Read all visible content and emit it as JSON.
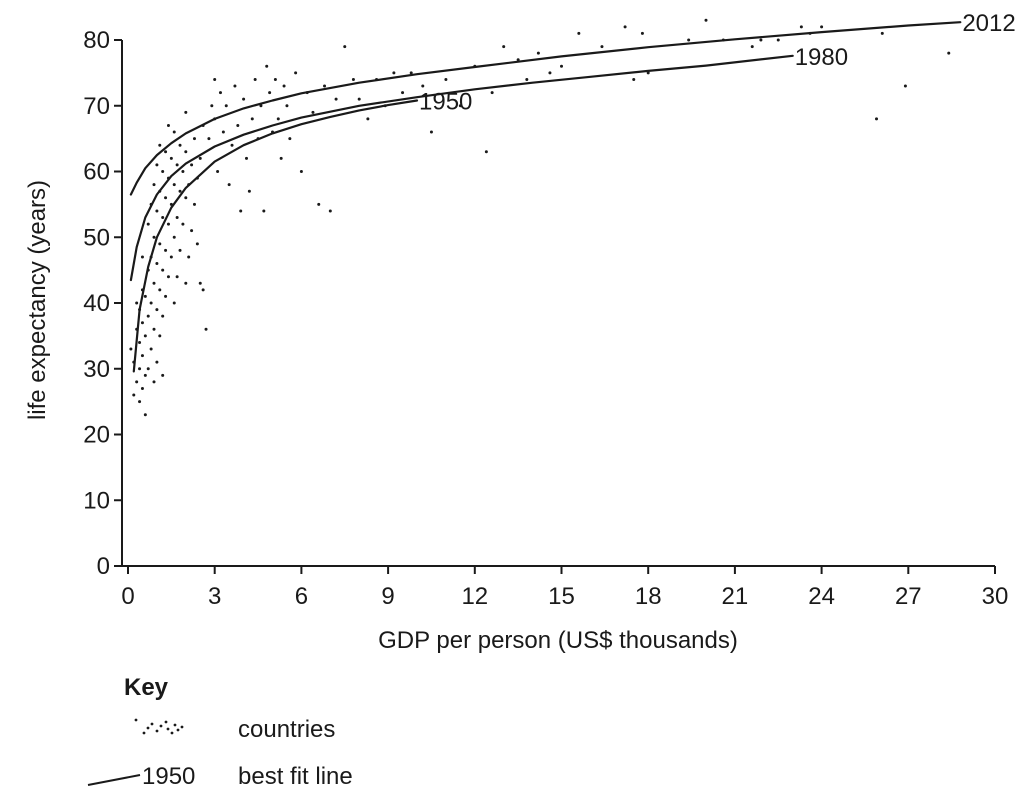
{
  "chart_data": {
    "type": "scatter",
    "xlabel": "GDP per person (US$ thousands)",
    "ylabel": "life expectancy (years)",
    "xlim": [
      0,
      30
    ],
    "ylim": [
      0,
      85
    ],
    "x_ticks": [
      0,
      3,
      6,
      9,
      12,
      15,
      18,
      21,
      24,
      27,
      30
    ],
    "y_ticks": [
      0,
      10,
      20,
      30,
      40,
      50,
      60,
      70,
      80
    ],
    "grid": false,
    "best_fit_lines": [
      {
        "label": "1950",
        "x": [
          0.2,
          0.4,
          0.7,
          1.0,
          1.5,
          2.0,
          3.0,
          4.0,
          5.0,
          6.0,
          7.0,
          8.0,
          9.0,
          10.0
        ],
        "y": [
          29.6,
          39.0,
          45.5,
          50.0,
          54.5,
          57.5,
          61.5,
          64.0,
          65.8,
          67.2,
          68.3,
          69.3,
          70.1,
          70.8
        ]
      },
      {
        "label": "1980",
        "x": [
          0.1,
          0.3,
          0.6,
          1.0,
          1.5,
          2.0,
          3.0,
          4.0,
          5.0,
          6.0,
          8.0,
          10.0,
          12.0,
          14.0,
          16.0,
          18.0,
          20.0,
          23.0
        ],
        "y": [
          43.5,
          48.5,
          53.0,
          56.5,
          59.3,
          61.2,
          63.8,
          65.6,
          67.0,
          68.2,
          70.0,
          71.3,
          72.5,
          73.5,
          74.4,
          75.3,
          76.1,
          77.6
        ]
      },
      {
        "label": "2012",
        "x": [
          0.1,
          0.3,
          0.6,
          1.0,
          1.5,
          2.0,
          3.0,
          4.0,
          5.0,
          6.0,
          8.0,
          10.0,
          12.0,
          15.0,
          18.0,
          21.0,
          24.0,
          27.0,
          28.8
        ],
        "y": [
          56.5,
          58.3,
          60.5,
          62.5,
          64.3,
          65.8,
          68.0,
          69.6,
          70.8,
          71.9,
          73.5,
          74.8,
          75.9,
          77.5,
          78.9,
          80.1,
          81.2,
          82.2,
          82.7
        ]
      }
    ],
    "points": [
      [
        0.1,
        33
      ],
      [
        0.2,
        26
      ],
      [
        0.2,
        31
      ],
      [
        0.3,
        28
      ],
      [
        0.3,
        36
      ],
      [
        0.3,
        40
      ],
      [
        0.4,
        25
      ],
      [
        0.4,
        30
      ],
      [
        0.4,
        34
      ],
      [
        0.4,
        39
      ],
      [
        0.5,
        27
      ],
      [
        0.5,
        32
      ],
      [
        0.5,
        37
      ],
      [
        0.5,
        42
      ],
      [
        0.5,
        47
      ],
      [
        0.6,
        29
      ],
      [
        0.6,
        35
      ],
      [
        0.6,
        41
      ],
      [
        0.6,
        23
      ],
      [
        0.7,
        30
      ],
      [
        0.7,
        38
      ],
      [
        0.7,
        45
      ],
      [
        0.7,
        52
      ],
      [
        0.8,
        33
      ],
      [
        0.8,
        40
      ],
      [
        0.8,
        47
      ],
      [
        0.8,
        55
      ],
      [
        0.9,
        28
      ],
      [
        0.9,
        36
      ],
      [
        0.9,
        43
      ],
      [
        0.9,
        50
      ],
      [
        0.9,
        58
      ],
      [
        1.0,
        31
      ],
      [
        1.0,
        39
      ],
      [
        1.0,
        46
      ],
      [
        1.0,
        54
      ],
      [
        1.0,
        61
      ],
      [
        1.1,
        35
      ],
      [
        1.1,
        42
      ],
      [
        1.1,
        49
      ],
      [
        1.1,
        57
      ],
      [
        1.1,
        64
      ],
      [
        1.2,
        29
      ],
      [
        1.2,
        38
      ],
      [
        1.2,
        45
      ],
      [
        1.2,
        53
      ],
      [
        1.2,
        60
      ],
      [
        1.3,
        41
      ],
      [
        1.3,
        48
      ],
      [
        1.3,
        56
      ],
      [
        1.3,
        63
      ],
      [
        1.4,
        44
      ],
      [
        1.4,
        52
      ],
      [
        1.4,
        59
      ],
      [
        1.4,
        67
      ],
      [
        1.5,
        47
      ],
      [
        1.5,
        55
      ],
      [
        1.5,
        62
      ],
      [
        1.6,
        40
      ],
      [
        1.6,
        50
      ],
      [
        1.6,
        58
      ],
      [
        1.6,
        66
      ],
      [
        1.7,
        44
      ],
      [
        1.7,
        53
      ],
      [
        1.7,
        61
      ],
      [
        1.8,
        48
      ],
      [
        1.8,
        57
      ],
      [
        1.8,
        64
      ],
      [
        1.9,
        52
      ],
      [
        1.9,
        60
      ],
      [
        2.0,
        43
      ],
      [
        2.0,
        56
      ],
      [
        2.0,
        63
      ],
      [
        2.0,
        69
      ],
      [
        2.1,
        47
      ],
      [
        2.1,
        58
      ],
      [
        2.2,
        51
      ],
      [
        2.2,
        61
      ],
      [
        2.3,
        55
      ],
      [
        2.3,
        65
      ],
      [
        2.4,
        49
      ],
      [
        2.4,
        59
      ],
      [
        2.5,
        43
      ],
      [
        2.5,
        62
      ],
      [
        2.6,
        42
      ],
      [
        2.6,
        67
      ],
      [
        2.7,
        36
      ],
      [
        2.8,
        65
      ],
      [
        2.9,
        70
      ],
      [
        3.0,
        74
      ],
      [
        3.0,
        68
      ],
      [
        3.1,
        60
      ],
      [
        3.2,
        72
      ],
      [
        3.3,
        66
      ],
      [
        3.4,
        70
      ],
      [
        3.5,
        58
      ],
      [
        3.6,
        64
      ],
      [
        3.7,
        73
      ],
      [
        3.8,
        67
      ],
      [
        3.9,
        54
      ],
      [
        4.0,
        71
      ],
      [
        4.1,
        62
      ],
      [
        4.2,
        57
      ],
      [
        4.3,
        68
      ],
      [
        4.4,
        74
      ],
      [
        4.5,
        65
      ],
      [
        4.6,
        70
      ],
      [
        4.7,
        54
      ],
      [
        4.8,
        76
      ],
      [
        4.9,
        72
      ],
      [
        5.0,
        66
      ],
      [
        5.1,
        74
      ],
      [
        5.2,
        68
      ],
      [
        5.3,
        62
      ],
      [
        5.4,
        73
      ],
      [
        5.5,
        70
      ],
      [
        5.6,
        65
      ],
      [
        5.8,
        75
      ],
      [
        6.0,
        60
      ],
      [
        6.2,
        72
      ],
      [
        6.4,
        69
      ],
      [
        6.6,
        55
      ],
      [
        6.8,
        73
      ],
      [
        7.0,
        54
      ],
      [
        7.2,
        71
      ],
      [
        7.5,
        79
      ],
      [
        7.8,
        74
      ],
      [
        8.0,
        71
      ],
      [
        8.3,
        68
      ],
      [
        8.6,
        74
      ],
      [
        8.9,
        70
      ],
      [
        9.2,
        75
      ],
      [
        9.5,
        72
      ],
      [
        9.8,
        75
      ],
      [
        10.2,
        73
      ],
      [
        10.5,
        66
      ],
      [
        11.0,
        74
      ],
      [
        11.5,
        70
      ],
      [
        12.0,
        76
      ],
      [
        12.4,
        63
      ],
      [
        12.6,
        72
      ],
      [
        13.0,
        79
      ],
      [
        13.5,
        77
      ],
      [
        13.8,
        74
      ],
      [
        14.2,
        78
      ],
      [
        14.6,
        75
      ],
      [
        15.0,
        76
      ],
      [
        15.6,
        81
      ],
      [
        16.4,
        79
      ],
      [
        17.2,
        82
      ],
      [
        17.5,
        74
      ],
      [
        17.8,
        81
      ],
      [
        18.0,
        75
      ],
      [
        19.4,
        80
      ],
      [
        20.0,
        83
      ],
      [
        20.6,
        80
      ],
      [
        21.6,
        79
      ],
      [
        21.9,
        80
      ],
      [
        22.5,
        80
      ],
      [
        23.3,
        82
      ],
      [
        23.6,
        81
      ],
      [
        24.0,
        82
      ],
      [
        25.9,
        68
      ],
      [
        26.1,
        81
      ],
      [
        26.9,
        73
      ],
      [
        28.4,
        78
      ]
    ],
    "key": {
      "title": "Key",
      "countries_label": "countries",
      "line_sample_label": "1950",
      "line_label": "best fit line"
    }
  }
}
